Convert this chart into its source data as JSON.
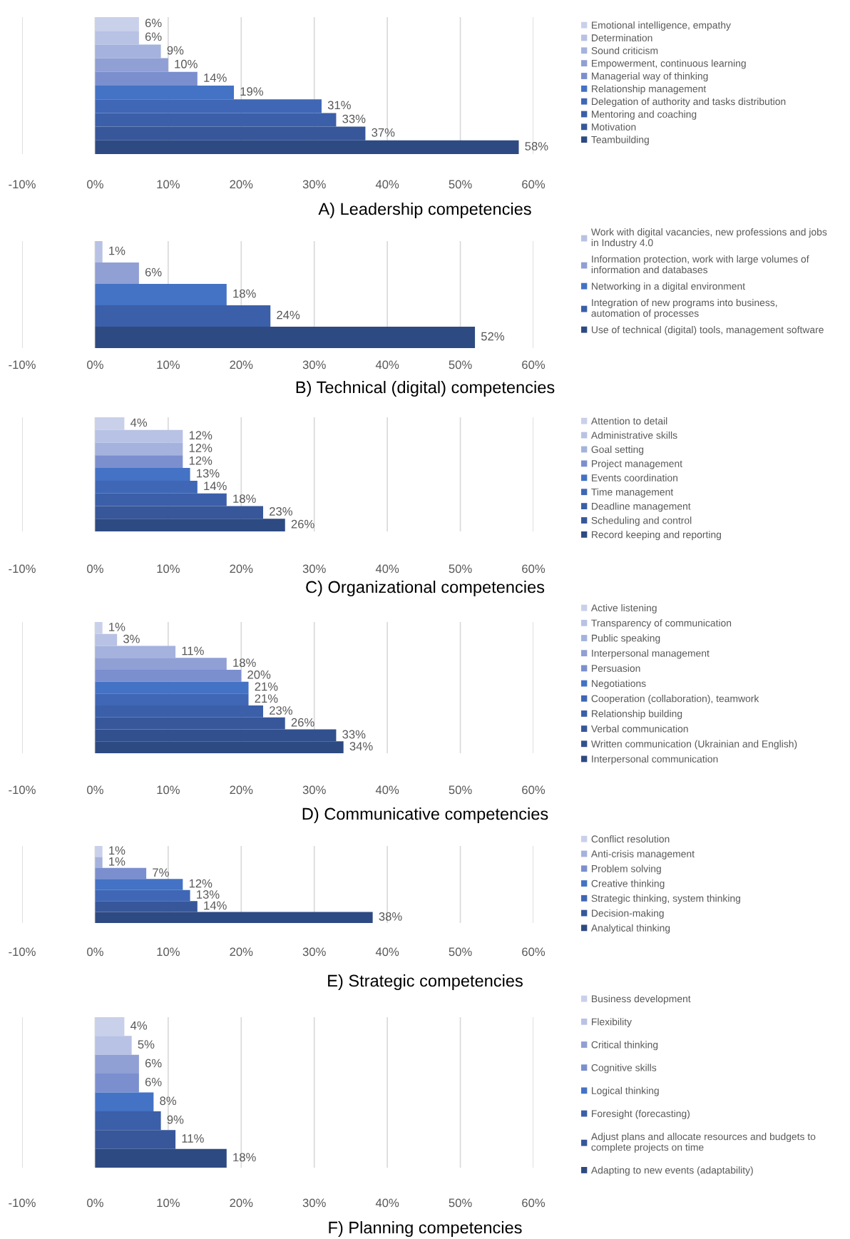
{
  "chart_data": [
    {
      "type": "bar",
      "orientation": "horizontal",
      "stacked": true,
      "title": "A) Leadership competencies",
      "xlim": [
        -10,
        60
      ],
      "xticks": [
        {
          "value": -10,
          "label": "-10%"
        },
        {
          "value": 0,
          "label": "0%"
        },
        {
          "value": 10,
          "label": "10%"
        },
        {
          "value": 20,
          "label": "20%"
        },
        {
          "value": 30,
          "label": "30%"
        },
        {
          "value": 40,
          "label": "40%"
        },
        {
          "value": 50,
          "label": "50%"
        },
        {
          "value": 60,
          "label": "60%"
        }
      ],
      "grid": "x",
      "legend": "right",
      "tick_labels": "x",
      "categories": [
        null,
        null,
        null,
        null,
        null,
        null,
        null,
        null,
        null,
        null
      ],
      "series": [
        {
          "name": "Emotional intelligence, empathy",
          "color": "#c9d0ea",
          "values": [
            6,
            null,
            null,
            null,
            null,
            null,
            null,
            null,
            null,
            null
          ],
          "value_labels": [
            "6%",
            null,
            null,
            null,
            null,
            null,
            null,
            null,
            null,
            null
          ]
        },
        {
          "name": "Determination",
          "color": "#b8c2e4",
          "values": [
            null,
            6,
            null,
            null,
            null,
            null,
            null,
            null,
            null,
            null
          ],
          "value_labels": [
            null,
            "6%",
            null,
            null,
            null,
            null,
            null,
            null,
            null,
            null
          ]
        },
        {
          "name": "Sound criticism",
          "color": "#a4b2dd",
          "values": [
            null,
            null,
            9,
            null,
            null,
            null,
            null,
            null,
            null,
            null
          ],
          "value_labels": [
            null,
            null,
            "9%",
            null,
            null,
            null,
            null,
            null,
            null,
            null
          ]
        },
        {
          "name": "Empowerment, continuous learning",
          "color": "#909fd4",
          "values": [
            null,
            null,
            null,
            10,
            null,
            null,
            null,
            null,
            null,
            null
          ],
          "value_labels": [
            null,
            null,
            null,
            "10%",
            null,
            null,
            null,
            null,
            null,
            null
          ]
        },
        {
          "name": "Managerial way of thinking",
          "color": "#7b8fcf",
          "values": [
            null,
            null,
            null,
            null,
            14,
            null,
            null,
            null,
            null,
            null
          ],
          "value_labels": [
            null,
            null,
            null,
            null,
            "14%",
            null,
            null,
            null,
            null,
            null
          ]
        },
        {
          "name": "Relationship management",
          "color": "#4472c4",
          "values": [
            null,
            null,
            null,
            null,
            null,
            19,
            null,
            null,
            null,
            null
          ],
          "value_labels": [
            null,
            null,
            null,
            null,
            null,
            "19%",
            null,
            null,
            null,
            null
          ]
        },
        {
          "name": "Delegation of authority and tasks distribution",
          "color": "#3f67b5",
          "values": [
            null,
            null,
            null,
            null,
            null,
            null,
            31,
            null,
            null,
            null
          ],
          "value_labels": [
            null,
            null,
            null,
            null,
            null,
            null,
            "31%",
            null,
            null,
            null
          ]
        },
        {
          "name": "Mentoring and coaching",
          "color": "#3b5fa8",
          "values": [
            null,
            null,
            null,
            null,
            null,
            null,
            null,
            33,
            null,
            null
          ],
          "value_labels": [
            null,
            null,
            null,
            null,
            null,
            null,
            null,
            "33%",
            null,
            null
          ]
        },
        {
          "name": "Motivation",
          "color": "#37579a",
          "values": [
            null,
            null,
            null,
            null,
            null,
            null,
            null,
            null,
            37,
            null
          ],
          "value_labels": [
            null,
            null,
            null,
            null,
            null,
            null,
            null,
            null,
            "37%",
            null
          ]
        },
        {
          "name": "Teambuilding",
          "color": "#2e4a82",
          "values": [
            null,
            null,
            null,
            null,
            null,
            null,
            null,
            null,
            null,
            58
          ],
          "value_labels": [
            null,
            null,
            null,
            null,
            null,
            null,
            null,
            null,
            null,
            "58%"
          ]
        }
      ]
    },
    {
      "type": "bar",
      "orientation": "horizontal",
      "stacked": true,
      "title": "B) Technical (digital) competencies",
      "xlim": [
        -10,
        60
      ],
      "xticks": [
        {
          "value": -10,
          "label": "-10%"
        },
        {
          "value": 0,
          "label": "0%"
        },
        {
          "value": 10,
          "label": "10%"
        },
        {
          "value": 20,
          "label": "20%"
        },
        {
          "value": 30,
          "label": "30%"
        },
        {
          "value": 40,
          "label": "40%"
        },
        {
          "value": 50,
          "label": "50%"
        },
        {
          "value": 60,
          "label": "60%"
        }
      ],
      "grid": "x",
      "legend": "right",
      "tick_labels": "x",
      "categories": [
        null,
        null,
        null,
        null,
        null
      ],
      "series": [
        {
          "name": "Work with digital vacancies, new professions and jobs\nin Industry 4.0",
          "color": "#b8c2e4",
          "values": [
            1,
            null,
            null,
            null,
            null
          ],
          "value_labels": [
            "1%",
            null,
            null,
            null,
            null
          ]
        },
        {
          "name": "Information protection, work with large volumes of\ninformation and databases",
          "color": "#909fd4",
          "values": [
            null,
            6,
            null,
            null,
            null
          ],
          "value_labels": [
            null,
            "6%",
            null,
            null,
            null
          ]
        },
        {
          "name": "Networking in a digital environment",
          "color": "#4472c4",
          "values": [
            null,
            null,
            18,
            null,
            null
          ],
          "value_labels": [
            null,
            null,
            "18%",
            null,
            null
          ]
        },
        {
          "name": "Integration of new programs into business,\nautomation of processes",
          "color": "#3b5fa8",
          "values": [
            null,
            null,
            null,
            24,
            null
          ],
          "value_labels": [
            null,
            null,
            null,
            "24%",
            null
          ]
        },
        {
          "name": "Use of technical (digital) tools, management software",
          "color": "#2e4a82",
          "values": [
            null,
            null,
            null,
            null,
            52
          ],
          "value_labels": [
            null,
            null,
            null,
            null,
            "52%"
          ]
        }
      ]
    },
    {
      "type": "bar",
      "orientation": "horizontal",
      "stacked": true,
      "title": "C) Organizational competencies",
      "xlim": [
        -10,
        60
      ],
      "xticks": [
        {
          "value": -10,
          "label": "-10%"
        },
        {
          "value": 0,
          "label": "0%"
        },
        {
          "value": 10,
          "label": "10%"
        },
        {
          "value": 20,
          "label": "20%"
        },
        {
          "value": 30,
          "label": "30%"
        },
        {
          "value": 40,
          "label": "40%"
        },
        {
          "value": 50,
          "label": "50%"
        },
        {
          "value": 60,
          "label": "60%"
        }
      ],
      "grid": "x",
      "legend": "right",
      "tick_labels": "x",
      "categories": [
        null,
        null,
        null,
        null,
        null,
        null,
        null,
        null,
        null
      ],
      "series": [
        {
          "name": "Attention to detail",
          "color": "#c9d0ea",
          "values": [
            4,
            null,
            null,
            null,
            null,
            null,
            null,
            null,
            null
          ],
          "value_labels": [
            "4%",
            null,
            null,
            null,
            null,
            null,
            null,
            null,
            null
          ]
        },
        {
          "name": "Administrative skills",
          "color": "#b8c2e4",
          "values": [
            null,
            12,
            null,
            null,
            null,
            null,
            null,
            null,
            null
          ],
          "value_labels": [
            null,
            "12%",
            null,
            null,
            null,
            null,
            null,
            null,
            null
          ]
        },
        {
          "name": "Goal setting",
          "color": "#a4b2dd",
          "values": [
            null,
            null,
            12,
            null,
            null,
            null,
            null,
            null,
            null
          ],
          "value_labels": [
            null,
            null,
            "12%",
            null,
            null,
            null,
            null,
            null,
            null
          ]
        },
        {
          "name": "Project management",
          "color": "#7b8fcf",
          "values": [
            null,
            null,
            null,
            12,
            null,
            null,
            null,
            null,
            null
          ],
          "value_labels": [
            null,
            null,
            null,
            "12%",
            null,
            null,
            null,
            null,
            null
          ]
        },
        {
          "name": "Events coordination",
          "color": "#4472c4",
          "values": [
            null,
            null,
            null,
            null,
            13,
            null,
            null,
            null,
            null
          ],
          "value_labels": [
            null,
            null,
            null,
            null,
            "13%",
            null,
            null,
            null,
            null
          ]
        },
        {
          "name": "Time management",
          "color": "#3f67b5",
          "values": [
            null,
            null,
            null,
            null,
            null,
            14,
            null,
            null,
            null
          ],
          "value_labels": [
            null,
            null,
            null,
            null,
            null,
            "14%",
            null,
            null,
            null
          ]
        },
        {
          "name": "Deadline management",
          "color": "#3b5fa8",
          "values": [
            null,
            null,
            null,
            null,
            null,
            null,
            18,
            null,
            null
          ],
          "value_labels": [
            null,
            null,
            null,
            null,
            null,
            null,
            "18%",
            null,
            null
          ]
        },
        {
          "name": "Scheduling and control",
          "color": "#37579a",
          "values": [
            null,
            null,
            null,
            null,
            null,
            null,
            null,
            23,
            null
          ],
          "value_labels": [
            null,
            null,
            null,
            null,
            null,
            null,
            null,
            "23%",
            null
          ]
        },
        {
          "name": "Record keeping and reporting",
          "color": "#2e4a82",
          "values": [
            null,
            null,
            null,
            null,
            null,
            null,
            null,
            null,
            26
          ],
          "value_labels": [
            null,
            null,
            null,
            null,
            null,
            null,
            null,
            null,
            "26%"
          ]
        }
      ]
    },
    {
      "type": "bar",
      "orientation": "horizontal",
      "stacked": true,
      "title": "D) Communicative competencies",
      "xlim": [
        -10,
        60
      ],
      "xticks": [
        {
          "value": -10,
          "label": "-10%"
        },
        {
          "value": 0,
          "label": "0%"
        },
        {
          "value": 10,
          "label": "10%"
        },
        {
          "value": 20,
          "label": "20%"
        },
        {
          "value": 30,
          "label": "30%"
        },
        {
          "value": 40,
          "label": "40%"
        },
        {
          "value": 50,
          "label": "50%"
        },
        {
          "value": 60,
          "label": "60%"
        }
      ],
      "grid": "x",
      "legend": "right",
      "tick_labels": "x",
      "categories": [
        null,
        null,
        null,
        null,
        null,
        null,
        null,
        null,
        null,
        null,
        null
      ],
      "series": [
        {
          "name": "Active listening",
          "color": "#c9d0ea",
          "values": [
            1,
            null,
            null,
            null,
            null,
            null,
            null,
            null,
            null,
            null,
            null
          ],
          "value_labels": [
            "1%",
            null,
            null,
            null,
            null,
            null,
            null,
            null,
            null,
            null,
            null
          ]
        },
        {
          "name": "Transparency of communication",
          "color": "#b8c2e4",
          "values": [
            null,
            3,
            null,
            null,
            null,
            null,
            null,
            null,
            null,
            null,
            null
          ],
          "value_labels": [
            null,
            "3%",
            null,
            null,
            null,
            null,
            null,
            null,
            null,
            null,
            null
          ]
        },
        {
          "name": "Public speaking",
          "color": "#a4b2dd",
          "values": [
            null,
            null,
            11,
            null,
            null,
            null,
            null,
            null,
            null,
            null,
            null
          ],
          "value_labels": [
            null,
            null,
            "11%",
            null,
            null,
            null,
            null,
            null,
            null,
            null,
            null
          ]
        },
        {
          "name": "Interpersonal management",
          "color": "#909fd4",
          "values": [
            null,
            null,
            null,
            18,
            null,
            null,
            null,
            null,
            null,
            null,
            null
          ],
          "value_labels": [
            null,
            null,
            null,
            "18%",
            null,
            null,
            null,
            null,
            null,
            null,
            null
          ]
        },
        {
          "name": "Persuasion",
          "color": "#7b8fcf",
          "values": [
            null,
            null,
            null,
            null,
            20,
            null,
            null,
            null,
            null,
            null,
            null
          ],
          "value_labels": [
            null,
            null,
            null,
            null,
            "20%",
            null,
            null,
            null,
            null,
            null,
            null
          ]
        },
        {
          "name": "Negotiations",
          "color": "#4472c4",
          "values": [
            null,
            null,
            null,
            null,
            null,
            21,
            null,
            null,
            null,
            null,
            null
          ],
          "value_labels": [
            null,
            null,
            null,
            null,
            null,
            "21%",
            null,
            null,
            null,
            null,
            null
          ]
        },
        {
          "name": "Cooperation (collaboration), teamwork",
          "color": "#3f67b5",
          "values": [
            null,
            null,
            null,
            null,
            null,
            null,
            21,
            null,
            null,
            null,
            null
          ],
          "value_labels": [
            null,
            null,
            null,
            null,
            null,
            null,
            "21%",
            null,
            null,
            null,
            null
          ]
        },
        {
          "name": "Relationship building",
          "color": "#3b5fa8",
          "values": [
            null,
            null,
            null,
            null,
            null,
            null,
            null,
            23,
            null,
            null,
            null
          ],
          "value_labels": [
            null,
            null,
            null,
            null,
            null,
            null,
            null,
            "23%",
            null,
            null,
            null
          ]
        },
        {
          "name": "Verbal communication",
          "color": "#37579a",
          "values": [
            null,
            null,
            null,
            null,
            null,
            null,
            null,
            null,
            26,
            null,
            null
          ],
          "value_labels": [
            null,
            null,
            null,
            null,
            null,
            null,
            null,
            null,
            "26%",
            null,
            null
          ]
        },
        {
          "name": "Written communication (Ukrainian and English)",
          "color": "#32508e",
          "values": [
            null,
            null,
            null,
            null,
            null,
            null,
            null,
            null,
            null,
            33,
            null
          ],
          "value_labels": [
            null,
            null,
            null,
            null,
            null,
            null,
            null,
            null,
            null,
            "33%",
            null
          ]
        },
        {
          "name": "Interpersonal communication",
          "color": "#2e4a82",
          "values": [
            null,
            null,
            null,
            null,
            null,
            null,
            null,
            null,
            null,
            null,
            34
          ],
          "value_labels": [
            null,
            null,
            null,
            null,
            null,
            null,
            null,
            null,
            null,
            null,
            "34%"
          ]
        }
      ]
    },
    {
      "type": "bar",
      "orientation": "horizontal",
      "stacked": true,
      "title": "E) Strategic competencies",
      "xlim": [
        -10,
        60
      ],
      "xticks": [
        {
          "value": -10,
          "label": "-10%"
        },
        {
          "value": 0,
          "label": "0%"
        },
        {
          "value": 10,
          "label": "10%"
        },
        {
          "value": 20,
          "label": "20%"
        },
        {
          "value": 30,
          "label": "30%"
        },
        {
          "value": 40,
          "label": "40%"
        },
        {
          "value": 50,
          "label": "50%"
        },
        {
          "value": 60,
          "label": "60%"
        }
      ],
      "grid": "x",
      "legend": "right",
      "tick_labels": "x",
      "categories": [
        null,
        null,
        null,
        null,
        null,
        null,
        null
      ],
      "series": [
        {
          "name": "Conflict resolution",
          "color": "#c9d0ea",
          "values": [
            1,
            null,
            null,
            null,
            null,
            null,
            null
          ],
          "value_labels": [
            "1%",
            null,
            null,
            null,
            null,
            null,
            null
          ]
        },
        {
          "name": "Anti-crisis management",
          "color": "#a4b2dd",
          "values": [
            null,
            1,
            null,
            null,
            null,
            null,
            null
          ],
          "value_labels": [
            null,
            "1%",
            null,
            null,
            null,
            null,
            null
          ]
        },
        {
          "name": "Problem solving",
          "color": "#7b8fcf",
          "values": [
            null,
            null,
            7,
            null,
            null,
            null,
            null
          ],
          "value_labels": [
            null,
            null,
            "7%",
            null,
            null,
            null,
            null
          ]
        },
        {
          "name": "Creative thinking",
          "color": "#4472c4",
          "values": [
            null,
            null,
            null,
            12,
            null,
            null,
            null
          ],
          "value_labels": [
            null,
            null,
            null,
            "12%",
            null,
            null,
            null
          ]
        },
        {
          "name": "Strategic thinking, system thinking",
          "color": "#3f67b5",
          "values": [
            null,
            null,
            null,
            null,
            13,
            null,
            null
          ],
          "value_labels": [
            null,
            null,
            null,
            null,
            "13%",
            null,
            null
          ]
        },
        {
          "name": "Decision-making",
          "color": "#37579a",
          "values": [
            null,
            null,
            null,
            null,
            null,
            14,
            null
          ],
          "value_labels": [
            null,
            null,
            null,
            null,
            null,
            "14%",
            null
          ]
        },
        {
          "name": "Analytical thinking",
          "color": "#2e4a82",
          "values": [
            null,
            null,
            null,
            null,
            null,
            null,
            38
          ],
          "value_labels": [
            null,
            null,
            null,
            null,
            null,
            null,
            "38%"
          ]
        }
      ]
    },
    {
      "type": "bar",
      "orientation": "horizontal",
      "stacked": true,
      "title": "F) Planning competencies",
      "xlim": [
        -10,
        60
      ],
      "xticks": [
        {
          "value": -10,
          "label": "-10%"
        },
        {
          "value": 0,
          "label": "0%"
        },
        {
          "value": 10,
          "label": "10%"
        },
        {
          "value": 20,
          "label": "20%"
        },
        {
          "value": 30,
          "label": "30%"
        },
        {
          "value": 40,
          "label": "40%"
        },
        {
          "value": 50,
          "label": "50%"
        },
        {
          "value": 60,
          "label": "60%"
        }
      ],
      "grid": "x",
      "legend": "right",
      "tick_labels": "x",
      "categories": [
        null,
        null,
        null,
        null,
        null,
        null,
        null,
        null
      ],
      "series": [
        {
          "name": "Business development",
          "color": "#c9d0ea",
          "values": [
            4,
            null,
            null,
            null,
            null,
            null,
            null,
            null
          ],
          "value_labels": [
            "4%",
            null,
            null,
            null,
            null,
            null,
            null,
            null
          ]
        },
        {
          "name": "Flexibility",
          "color": "#b8c2e4",
          "values": [
            null,
            5,
            null,
            null,
            null,
            null,
            null,
            null
          ],
          "value_labels": [
            null,
            "5%",
            null,
            null,
            null,
            null,
            null,
            null
          ]
        },
        {
          "name": "Critical thinking",
          "color": "#909fd4",
          "values": [
            null,
            null,
            6,
            null,
            null,
            null,
            null,
            null
          ],
          "value_labels": [
            null,
            null,
            "6%",
            null,
            null,
            null,
            null,
            null
          ]
        },
        {
          "name": "Cognitive skills",
          "color": "#7b8fcf",
          "values": [
            null,
            null,
            null,
            6,
            null,
            null,
            null,
            null
          ],
          "value_labels": [
            null,
            null,
            null,
            "6%",
            null,
            null,
            null,
            null
          ]
        },
        {
          "name": "Logical thinking",
          "color": "#4472c4",
          "values": [
            null,
            null,
            null,
            null,
            8,
            null,
            null,
            null
          ],
          "value_labels": [
            null,
            null,
            null,
            null,
            "8%",
            null,
            null,
            null
          ]
        },
        {
          "name": "Foresight (forecasting)",
          "color": "#3b5fa8",
          "values": [
            null,
            null,
            null,
            null,
            null,
            9,
            null,
            null
          ],
          "value_labels": [
            null,
            null,
            null,
            null,
            null,
            "9%",
            null,
            null
          ]
        },
        {
          "name": "Adjust plans and allocate resources and budgets to\ncomplete projects on time",
          "color": "#37579a",
          "values": [
            null,
            null,
            null,
            null,
            null,
            null,
            11,
            null
          ],
          "value_labels": [
            null,
            null,
            null,
            null,
            null,
            null,
            "11%",
            null
          ]
        },
        {
          "name": "Adapting to new events (adaptability)",
          "color": "#2e4a82",
          "values": [
            null,
            null,
            null,
            null,
            null,
            null,
            null,
            18
          ],
          "value_labels": [
            null,
            null,
            null,
            null,
            null,
            null,
            null,
            "18%"
          ]
        }
      ]
    }
  ]
}
